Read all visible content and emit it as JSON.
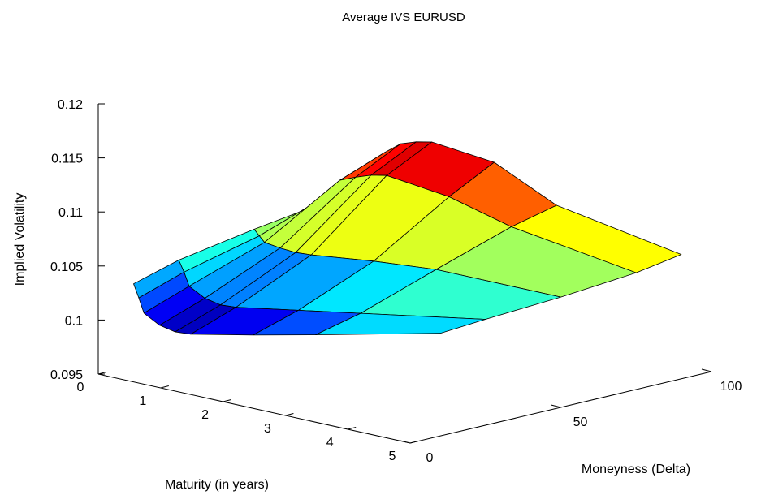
{
  "chart_data": {
    "type": "surface",
    "title": "Average IVS EURUSD",
    "xlabel": "Maturity (in years)",
    "ylabel": "Moneyness (Delta)",
    "zlabel": "Implied Volatility",
    "x_ticks": [
      "0",
      "1",
      "2",
      "3",
      "4",
      "5"
    ],
    "y_ticks": [
      "0",
      "50",
      "100"
    ],
    "z_ticks": [
      "0.095",
      "0.1",
      "0.105",
      "0.11",
      "0.115",
      "0.12"
    ],
    "xlim": [
      0,
      5
    ],
    "ylim": [
      0,
      100
    ],
    "zlim": [
      0.095,
      0.12
    ],
    "colormap": "jet",
    "maturity": [
      0.083,
      0.167,
      0.25,
      0.5,
      0.75,
      1,
      2,
      3,
      5
    ],
    "delta": [
      10,
      25,
      50,
      75,
      90
    ],
    "iv": [
      [
        0.1028,
        0.104,
        0.1052,
        0.1062,
        0.1066
      ],
      [
        0.1016,
        0.103,
        0.1047,
        0.1072,
        0.1082
      ],
      [
        0.1003,
        0.1018,
        0.1042,
        0.1083,
        0.1099
      ],
      [
        0.0995,
        0.101,
        0.104,
        0.1089,
        0.111
      ],
      [
        0.0992,
        0.1007,
        0.1039,
        0.1094,
        0.1115
      ],
      [
        0.0993,
        0.1008,
        0.104,
        0.1097,
        0.1118
      ],
      [
        0.1005,
        0.1018,
        0.1047,
        0.109,
        0.1112
      ],
      [
        0.1018,
        0.1028,
        0.1052,
        0.1075,
        0.1085
      ],
      [
        0.1045,
        0.1048,
        0.1052,
        0.1058,
        0.1065
      ]
    ]
  }
}
